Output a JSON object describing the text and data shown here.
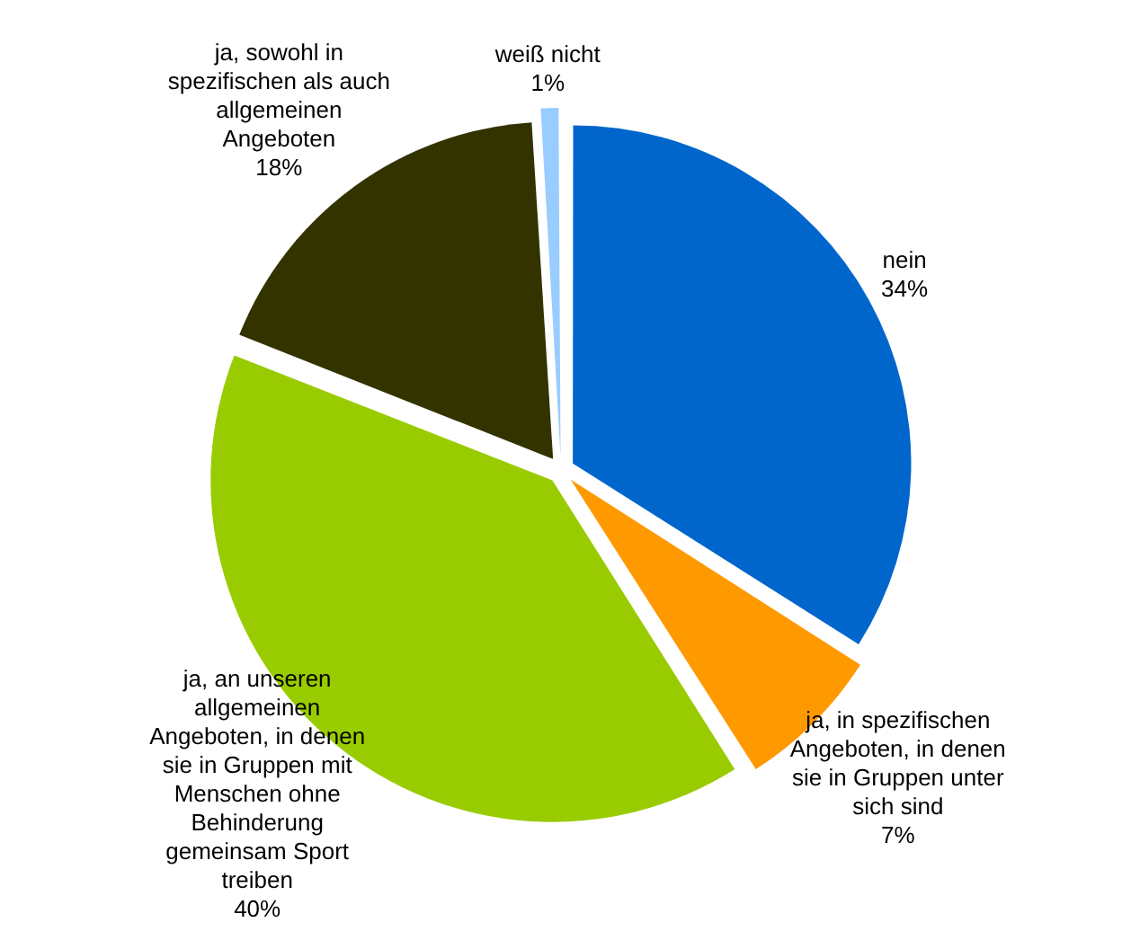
{
  "chart_data": {
    "type": "pie",
    "categories": [
      "nein",
      "ja, in spezifischen Angeboten, in denen sie in Gruppen unter sich sind",
      "ja, an unseren allgemeinen Angeboten, in denen sie in Gruppen mit Menschen ohne Behinderung gemeinsam Sport treiben",
      "ja, sowohl in spezifischen als auch allgemeinen Angeboten",
      "weiß nicht"
    ],
    "values": [
      34,
      7,
      40,
      18,
      1
    ],
    "value_labels": [
      "34%",
      "7%",
      "40%",
      "18%",
      "1%"
    ],
    "colors": [
      "#0066cc",
      "#ff9900",
      "#99cc00",
      "#333300",
      "#99ccff"
    ],
    "legend": false
  }
}
